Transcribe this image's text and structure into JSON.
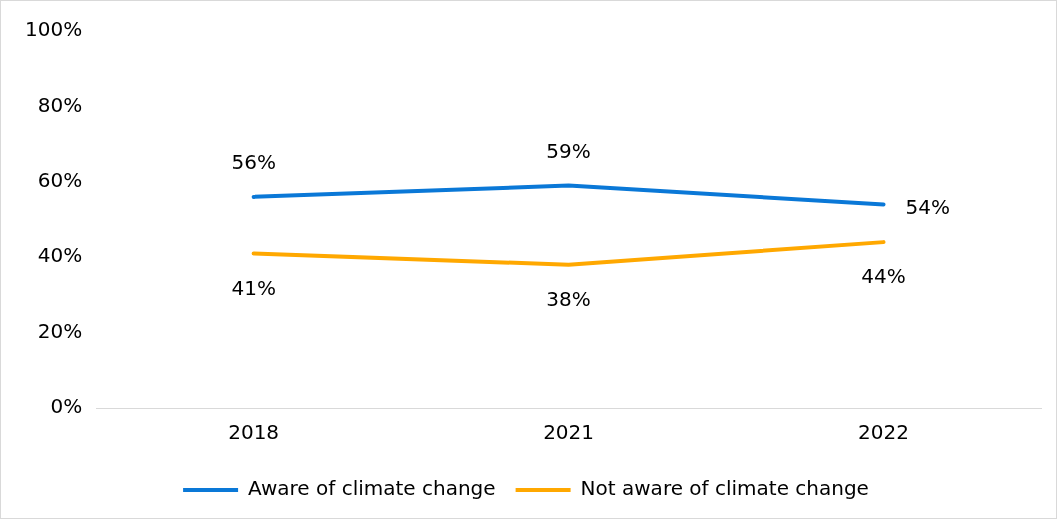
{
  "chart_data": {
    "type": "line",
    "categories": [
      "2018",
      "2021",
      "2022"
    ],
    "series": [
      {
        "name": "Aware of climate change",
        "color": "#0a78d7",
        "values": [
          56,
          59,
          54
        ],
        "value_labels": [
          "56%",
          "59%",
          "54%"
        ]
      },
      {
        "name": "Not aware of climate change",
        "color": "#ffa800",
        "values": [
          41,
          38,
          44
        ],
        "value_labels": [
          "41%",
          "38%",
          "44%"
        ]
      }
    ],
    "ylim": [
      0,
      100
    ],
    "yticks": [
      {
        "value": 0,
        "label": "0%"
      },
      {
        "value": 20,
        "label": "20%"
      },
      {
        "value": 40,
        "label": "40%"
      },
      {
        "value": 60,
        "label": "60%"
      },
      {
        "value": 80,
        "label": "80%"
      },
      {
        "value": 100,
        "label": "100%"
      }
    ],
    "grid": false,
    "legend": "bottom",
    "marker": "none",
    "line_style": "solid"
  }
}
